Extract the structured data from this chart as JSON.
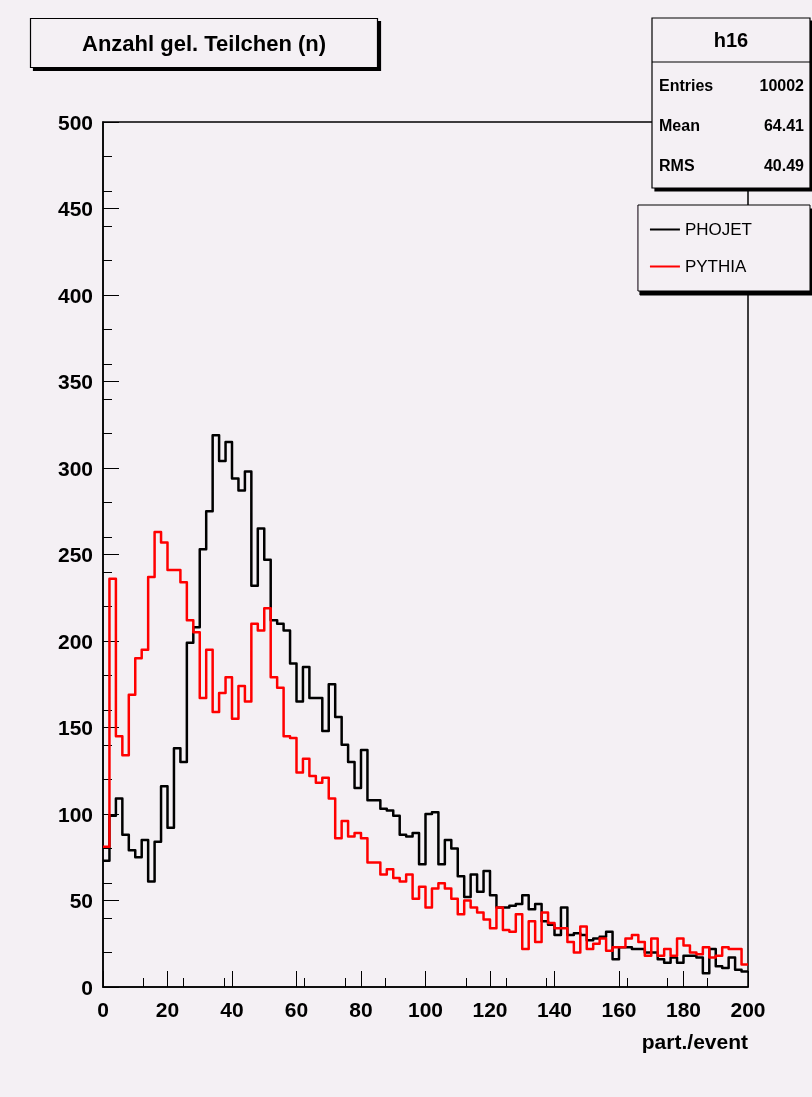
{
  "chart_data": {
    "type": "histogram",
    "title": "Anzahl gel. Teilchen (n)",
    "xlabel": "part./event",
    "annotations": [
      "h16",
      "Entries",
      "10002",
      "Mean",
      "64.41",
      "RMS",
      "40.49"
    ],
    "bins": [
      0,
      2,
      4,
      6,
      8,
      10,
      12,
      14,
      16,
      18,
      20,
      22,
      24,
      26,
      28,
      30,
      32,
      34,
      36,
      38,
      40,
      42,
      44,
      46,
      48,
      50,
      52,
      54,
      56,
      58,
      60,
      62,
      64,
      66,
      68,
      70,
      72,
      74,
      76,
      78,
      80,
      82,
      84,
      86,
      88,
      90,
      92,
      94,
      96,
      98,
      100,
      102,
      104,
      106,
      108,
      110,
      112,
      114,
      116,
      118,
      120,
      122,
      124,
      126,
      128,
      130,
      132,
      134,
      136,
      138,
      140,
      142,
      144,
      146,
      148,
      150,
      152,
      154,
      156,
      158,
      160,
      162,
      164,
      166,
      168,
      170,
      172,
      174,
      176,
      178,
      180,
      182,
      184,
      186,
      188,
      190,
      192,
      194,
      196,
      198,
      200
    ],
    "series": [
      {
        "name": "PHOJET",
        "color": "#000000",
        "values": [
          73,
          99,
          109,
          88,
          79,
          75,
          85,
          61,
          84,
          116,
          92,
          138,
          130,
          199,
          208,
          253,
          275,
          319,
          304,
          315,
          294,
          287,
          298,
          232,
          265,
          247,
          212,
          210,
          206,
          187,
          165,
          185,
          167,
          167,
          148,
          175,
          156,
          140,
          130,
          115,
          137,
          108,
          108,
          103,
          102,
          99,
          88,
          87,
          89,
          71,
          100,
          101,
          71,
          85,
          80,
          64,
          52,
          65,
          55,
          67,
          53,
          46,
          46,
          47,
          48,
          53,
          45,
          48,
          38,
          36,
          30,
          46,
          30,
          31,
          30,
          27,
          28,
          29,
          32,
          16,
          23,
          23,
          22,
          22,
          20,
          20,
          16,
          14,
          17,
          14,
          18,
          18,
          17,
          8,
          22,
          12,
          11,
          17,
          10,
          9
        ]
      },
      {
        "name": "PYTHIA",
        "color": "#ff0000",
        "values": [
          81,
          236,
          145,
          134,
          169,
          190,
          195,
          237,
          263,
          257,
          241,
          241,
          234,
          212,
          205,
          167,
          195,
          159,
          170,
          179,
          155,
          174,
          165,
          210,
          206,
          219,
          179,
          173,
          145,
          144,
          124,
          132,
          122,
          118,
          121,
          109,
          86,
          96,
          87,
          89,
          86,
          72,
          72,
          65,
          68,
          63,
          61,
          65,
          51,
          58,
          46,
          57,
          60,
          57,
          51,
          42,
          50,
          46,
          43,
          39,
          34,
          46,
          33,
          32,
          42,
          22,
          38,
          26,
          43,
          37,
          34,
          34,
          26,
          20,
          35,
          22,
          25,
          28,
          21,
          23,
          23,
          28,
          30,
          26,
          18,
          28,
          18,
          22,
          18,
          28,
          24,
          20,
          19,
          23,
          17,
          18,
          23,
          22,
          22,
          13
        ]
      }
    ],
    "xlim": [
      0,
      200
    ],
    "xticks": [
      0,
      20,
      40,
      60,
      80,
      100,
      120,
      140,
      160,
      180,
      200
    ],
    "ylim": [
      0,
      500
    ],
    "yticks": [
      0,
      50,
      100,
      150,
      200,
      250,
      300,
      350,
      400,
      450,
      500
    ],
    "legend": "top right"
  }
}
